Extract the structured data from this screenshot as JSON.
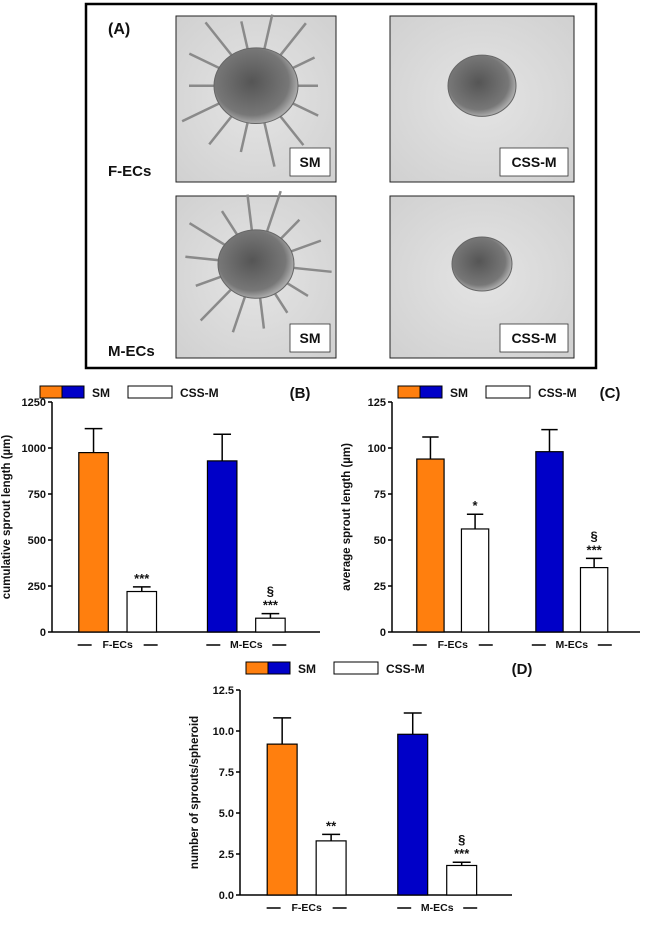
{
  "image_panel": {
    "label": "(A)",
    "rows": [
      "F-ECs",
      "M-ECs"
    ],
    "images": [
      [
        "SM",
        "CSS-M"
      ],
      [
        "SM",
        "CSS-M"
      ]
    ]
  },
  "chart_data": [
    {
      "type": "bar",
      "panel": "(B)",
      "y_label": "cumulative sprout length (µm)",
      "categories": [
        "F-ECs",
        "M-ECs"
      ],
      "series": [
        {
          "name": "SM",
          "colors": [
            "#ff7f0e",
            "#0000c8"
          ],
          "values": [
            975,
            930
          ],
          "errors": [
            130,
            145
          ],
          "significance": [
            [],
            []
          ]
        },
        {
          "name": "CSS-M",
          "color": "#ffffff",
          "values": [
            220,
            75
          ],
          "errors": [
            25,
            25
          ],
          "significance": [
            [
              "***"
            ],
            [
              "§",
              "***"
            ]
          ]
        }
      ],
      "ylim": [
        0,
        1250
      ],
      "yticks": [
        0,
        250,
        500,
        750,
        1000,
        1250
      ]
    },
    {
      "type": "bar",
      "panel": "(C)",
      "y_label": "average sprout length (µm)",
      "categories": [
        "F-ECs",
        "M-ECs"
      ],
      "series": [
        {
          "name": "SM",
          "colors": [
            "#ff7f0e",
            "#0000c8"
          ],
          "values": [
            94,
            98
          ],
          "errors": [
            12,
            12
          ],
          "significance": [
            [],
            []
          ]
        },
        {
          "name": "CSS-M",
          "color": "#ffffff",
          "values": [
            56,
            35
          ],
          "errors": [
            8,
            5
          ],
          "significance": [
            [
              "*"
            ],
            [
              "§",
              "***"
            ]
          ]
        }
      ],
      "ylim": [
        0,
        125
      ],
      "yticks": [
        0,
        25,
        50,
        75,
        100,
        125
      ]
    },
    {
      "type": "bar",
      "panel": "(D)",
      "y_label": "number of sprouts/spheroid",
      "categories": [
        "F-ECs",
        "M-ECs"
      ],
      "series": [
        {
          "name": "SM",
          "colors": [
            "#ff7f0e",
            "#0000c8"
          ],
          "values": [
            9.2,
            9.8
          ],
          "errors": [
            1.6,
            1.3
          ],
          "significance": [
            [],
            []
          ]
        },
        {
          "name": "CSS-M",
          "color": "#ffffff",
          "values": [
            3.3,
            1.8
          ],
          "errors": [
            0.4,
            0.2
          ],
          "significance": [
            [
              "**"
            ],
            [
              "§",
              "***"
            ]
          ]
        }
      ],
      "ylim": [
        0,
        12.5
      ],
      "yticks": [
        {
          "value": 0,
          "label": "0.0"
        },
        2.5,
        {
          "value": 5,
          "label": "5.0"
        },
        7.5,
        {
          "value": 10,
          "label": "10.0"
        },
        12.5
      ]
    }
  ]
}
